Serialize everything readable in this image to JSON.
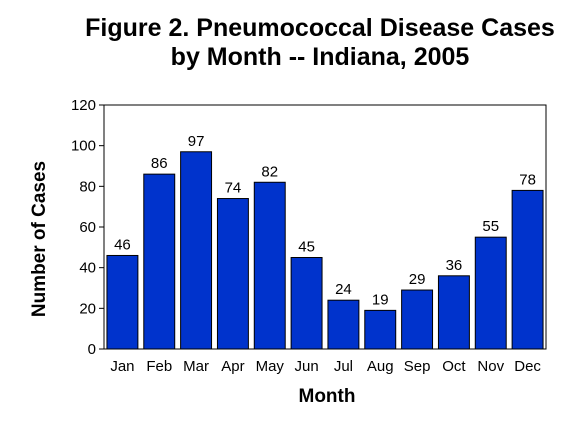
{
  "chart_data": {
    "type": "bar",
    "title": "Figure 2.  Pneumococcal Disease Cases\nby Month -- Indiana, 2005",
    "xlabel": "Month",
    "ylabel": "Number of Cases",
    "categories": [
      "Jan",
      "Feb",
      "Mar",
      "Apr",
      "May",
      "Jun",
      "Jul",
      "Aug",
      "Sep",
      "Oct",
      "Nov",
      "Dec"
    ],
    "values": [
      46,
      86,
      97,
      74,
      82,
      45,
      24,
      19,
      29,
      36,
      55,
      78
    ],
    "ylim": [
      0,
      120
    ],
    "yticks": [
      "0",
      "20",
      "40",
      "60",
      "80",
      "100",
      "120"
    ],
    "grid": false,
    "legend": "none",
    "bar_color": "#0033CC"
  }
}
